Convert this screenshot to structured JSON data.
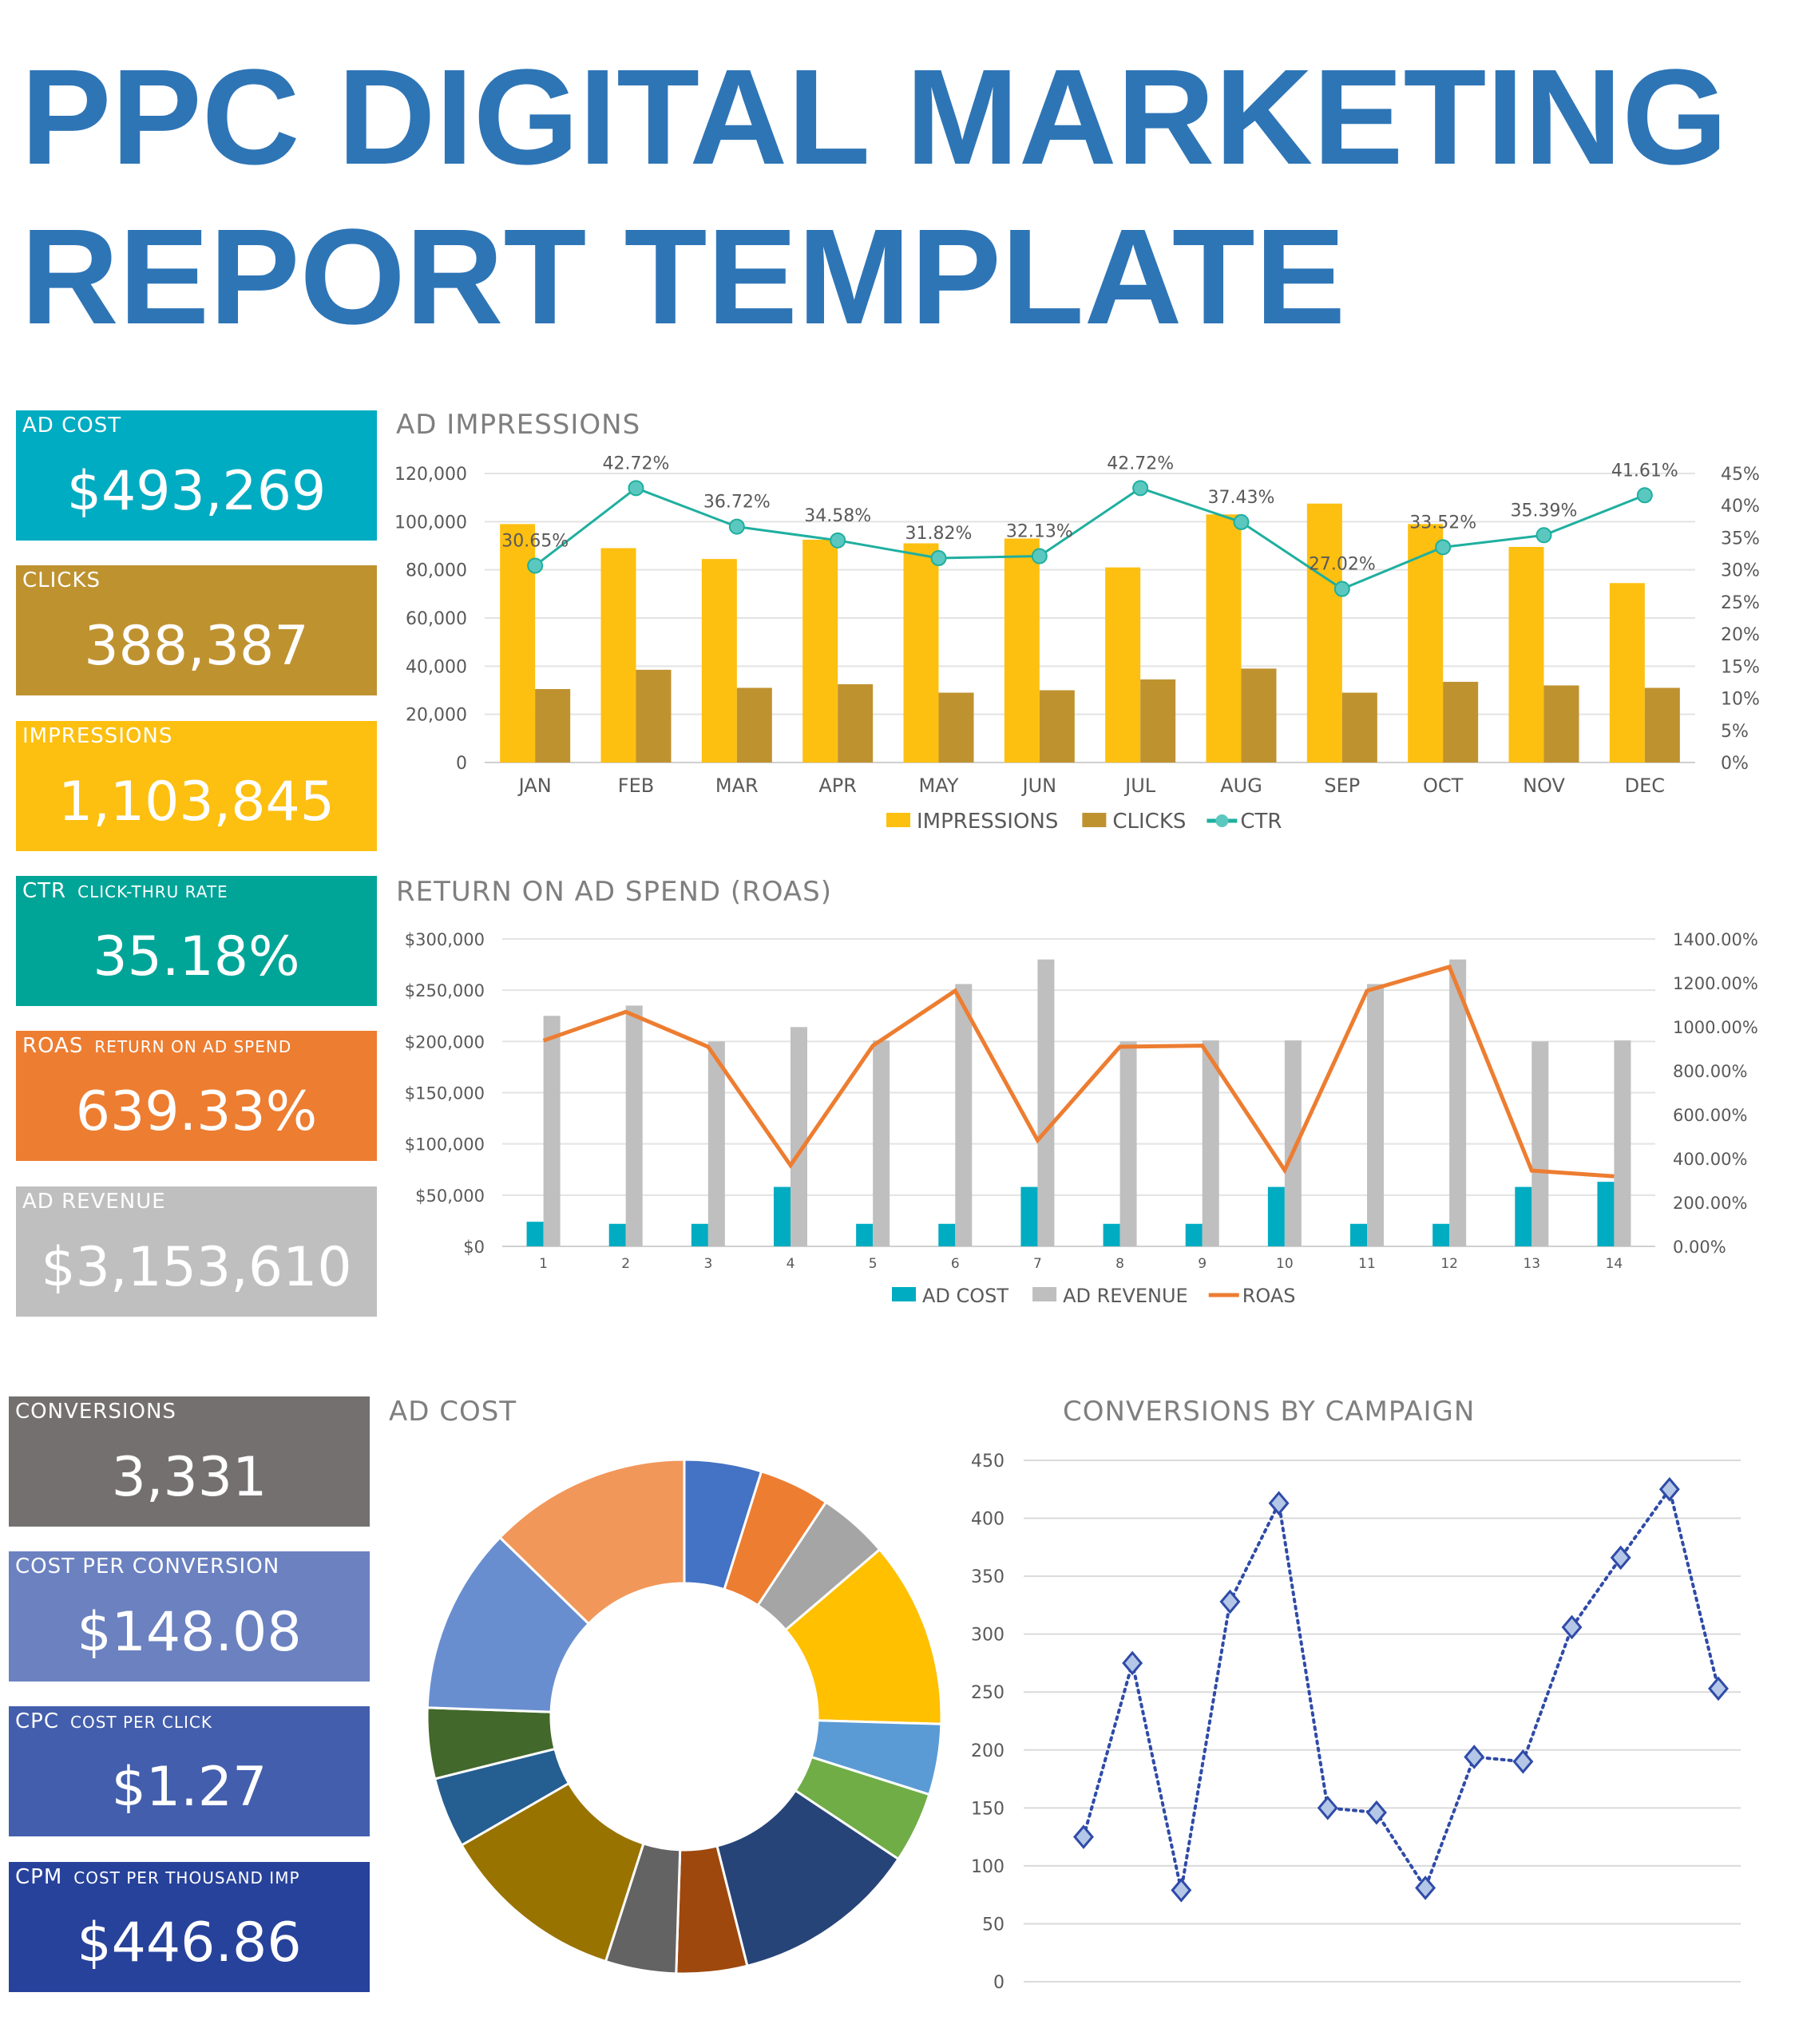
{
  "title": {
    "line1": "PPC DIGITAL MARKETING",
    "line2": "REPORT TEMPLATE"
  },
  "tiles": [
    {
      "label": "AD COST",
      "sub": "",
      "value": "$493,269",
      "color": "#00ACC1"
    },
    {
      "label": "CLICKS",
      "sub": "",
      "value": "388,387",
      "color": "#BF9230"
    },
    {
      "label": "IMPRESSIONS",
      "sub": "",
      "value": "1,103,845",
      "color": "#FDC010"
    },
    {
      "label": "CTR",
      "sub": "CLICK-THRU RATE",
      "value": "35.18%",
      "color": "#00A597"
    },
    {
      "label": "ROAS",
      "sub": "RETURN ON AD SPEND",
      "value": "639.33%",
      "color": "#ED7D31"
    },
    {
      "label": "AD REVENUE",
      "sub": "",
      "value": "$3,153,610",
      "color": "#BFBFBF"
    },
    {
      "label": "CONVERSIONS",
      "sub": "",
      "value": "3,331",
      "color": "#747070"
    },
    {
      "label": "COST PER CONVERSION",
      "sub": "",
      "value": "$148.08",
      "color": "#6B81C0"
    },
    {
      "label": "CPC",
      "sub": "COST PER CLICK",
      "value": "$1.27",
      "color": "#435EAC"
    },
    {
      "label": "CPM",
      "sub": "COST PER THOUSAND IMP",
      "value": "$446.86",
      "color": "#27429B"
    }
  ],
  "chart_data": [
    {
      "type": "bar",
      "title": "AD IMPRESSIONS",
      "categories": [
        "JAN",
        "FEB",
        "MAR",
        "APR",
        "MAY",
        "JUN",
        "JUL",
        "AUG",
        "SEP",
        "OCT",
        "NOV",
        "DEC"
      ],
      "series": [
        {
          "name": "IMPRESSIONS",
          "type": "bar",
          "axis": "left",
          "color": "#FDC010",
          "values": [
            99000,
            89000,
            84500,
            92500,
            91000,
            93000,
            81000,
            103000,
            107500,
            99000,
            89500,
            74500
          ]
        },
        {
          "name": "CLICKS",
          "type": "bar",
          "axis": "left",
          "color": "#BF9230",
          "values": [
            30500,
            38500,
            31000,
            32500,
            29000,
            30000,
            34500,
            39000,
            29000,
            33500,
            32000,
            31000
          ]
        },
        {
          "name": "CTR",
          "type": "line",
          "axis": "right",
          "color": "#1FAF9F",
          "marker_color": "#5BC8C0",
          "values": [
            30.65,
            42.72,
            36.72,
            34.58,
            31.82,
            32.13,
            42.72,
            37.43,
            27.02,
            33.52,
            35.39,
            41.61
          ],
          "labels": [
            "30.65%",
            "42.72%",
            "36.72%",
            "34.58%",
            "31.82%",
            "32.13%",
            "42.72%",
            "37.43%",
            "27.02%",
            "33.52%",
            "35.39%",
            "41.61%"
          ]
        }
      ],
      "ylim": [
        0,
        120000
      ],
      "yticks": [
        "0",
        "20,000",
        "40,000",
        "60,000",
        "80,000",
        "100,000",
        "120,000"
      ],
      "y2lim": [
        0,
        45
      ],
      "y2ticks": [
        "0%",
        "5%",
        "10%",
        "15%",
        "20%",
        "25%",
        "30%",
        "35%",
        "40%",
        "45%"
      ],
      "grid": true,
      "legend": "bottom"
    },
    {
      "type": "bar",
      "title": "RETURN ON AD SPEND (ROAS)",
      "categories": [
        "1",
        "2",
        "3",
        "4",
        "5",
        "6",
        "7",
        "8",
        "9",
        "10",
        "11",
        "12",
        "13",
        "14"
      ],
      "series": [
        {
          "name": "AD COST",
          "type": "bar",
          "axis": "left",
          "color": "#00ACC1",
          "values": [
            24000,
            22000,
            22000,
            58000,
            22000,
            22000,
            58000,
            22000,
            22000,
            58000,
            22000,
            22000,
            58000,
            63000
          ]
        },
        {
          "name": "AD REVENUE",
          "type": "bar",
          "axis": "left",
          "color": "#BFBFBF",
          "values": [
            225000,
            235000,
            200000,
            214000,
            201000,
            256000,
            280000,
            200000,
            201000,
            201000,
            256000,
            280000,
            200000,
            201000
          ]
        },
        {
          "name": "ROAS",
          "type": "line",
          "axis": "right",
          "color": "#ED7D31",
          "values": [
            937,
            1068,
            909,
            369,
            914,
            1164,
            483,
            909,
            914,
            347,
            1164,
            1273,
            345,
            319
          ]
        }
      ],
      "ylim": [
        0,
        300000
      ],
      "yticks": [
        "$0",
        "$50,000",
        "$100,000",
        "$150,000",
        "$200,000",
        "$250,000",
        "$300,000"
      ],
      "y2lim": [
        0,
        1400
      ],
      "y2ticks": [
        "0.00%",
        "200.00%",
        "400.00%",
        "600.00%",
        "800.00%",
        "1000.00%",
        "1200.00%",
        "1400.00%"
      ],
      "grid": true,
      "legend": "bottom"
    },
    {
      "type": "pie",
      "title": "AD COST",
      "donut": true,
      "values": [
        24000,
        22000,
        22000,
        58000,
        22000,
        22000,
        58000,
        22000,
        22000,
        58000,
        22000,
        22000,
        58000,
        63000
      ],
      "colors": [
        "#4472C4",
        "#ED7D31",
        "#A5A5A5",
        "#FFC000",
        "#5B9BD5",
        "#70AD47",
        "#264478",
        "#9E480E",
        "#636363",
        "#997300",
        "#255E91",
        "#43682B",
        "#698ED0",
        "#F1975A"
      ]
    },
    {
      "type": "line",
      "title": "CONVERSIONS BY CAMPAIGN",
      "values": [
        125,
        275,
        79,
        328,
        413,
        150,
        146,
        81,
        194,
        190,
        306,
        366,
        425,
        253
      ],
      "ylim": [
        0,
        450
      ],
      "yticks": [
        "0",
        "50",
        "100",
        "150",
        "200",
        "250",
        "300",
        "350",
        "400",
        "450"
      ],
      "line_style": "dotted",
      "marker": "diamond",
      "color": "#2F4BA8",
      "marker_fill": "#B4C7E7",
      "grid": true
    }
  ]
}
